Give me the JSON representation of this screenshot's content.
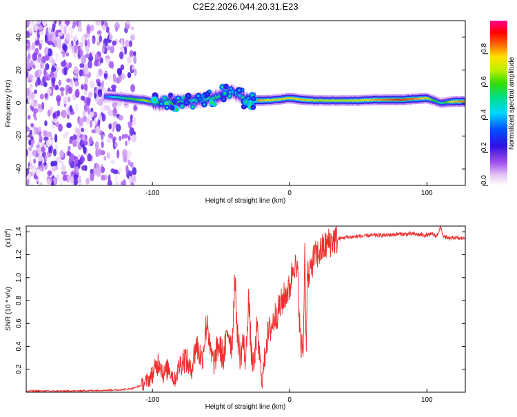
{
  "page_title": "C2E2.2026.044.20.31.E23",
  "colors": {
    "snr_line": "#f03030",
    "axis": "#000000",
    "spectro_background": "#ffffff"
  },
  "chart_data": [
    {
      "type": "heatmap",
      "title": "C2E2.2026.044.20.31.E23",
      "xlabel": "Height of straight line (km)",
      "ylabel": "Frequency (Hz)",
      "xlim": [
        -192,
        128
      ],
      "ylim": [
        -50,
        50
      ],
      "x_ticks": [
        -100,
        0,
        100
      ],
      "x_tick_labels": [
        "-100",
        "0",
        "100"
      ],
      "y_ticks": [
        -40,
        -20,
        0,
        20,
        40
      ],
      "y_tick_labels": [
        "-40",
        "-20",
        "0",
        "20",
        "40"
      ],
      "colorbar": {
        "label": "Normalized spectral amplitude",
        "range": [
          0,
          1
        ],
        "ticks": [
          0.0,
          0.2,
          0.4,
          0.6,
          0.8
        ],
        "tick_labels": [
          "0.0",
          "0.2",
          "0.4",
          "0.6",
          "0.8"
        ]
      },
      "ridge": {
        "x": [
          -135,
          -125,
          -115,
          -105,
          -95,
          -85,
          -75,
          -65,
          -55,
          -48,
          -42,
          -36,
          -30,
          -25,
          -20,
          -10,
          0,
          10,
          20,
          30,
          40,
          50,
          60,
          70,
          80,
          90,
          100,
          105,
          110,
          120,
          128
        ],
        "freq": [
          4,
          3.5,
          2.5,
          1.5,
          0,
          0.5,
          1,
          2,
          3,
          6,
          7,
          4,
          1,
          1.5,
          1.5,
          2,
          3,
          2,
          1.5,
          1.5,
          1.5,
          1.5,
          2,
          2,
          2,
          2.5,
          3,
          1.5,
          0,
          1,
          1
        ],
        "amplitude": [
          0.35,
          0.5,
          0.6,
          0.7,
          0.55,
          0.6,
          0.5,
          0.5,
          0.55,
          0.5,
          0.45,
          0.45,
          0.7,
          0.85,
          0.8,
          0.75,
          0.75,
          0.8,
          0.7,
          0.7,
          0.7,
          0.75,
          0.8,
          0.85,
          0.9,
          0.85,
          0.75,
          0.6,
          0.5,
          0.8,
          0.85
        ]
      },
      "noise_region": {
        "x_range": [
          -192,
          -112
        ],
        "freq_range": [
          -50,
          50
        ],
        "amplitude_range": [
          0.02,
          0.15
        ]
      }
    },
    {
      "type": "line",
      "xlabel": "Height of straight line (km)",
      "ylabel": "SNR (10 * v/v)",
      "y_scale_label": "(x10",
      "y_scale_exponent": "4",
      "y_scale_close": ")",
      "xlim": [
        -192,
        128
      ],
      "ylim": [
        0.0,
        1.45
      ],
      "x_ticks": [
        -100,
        0,
        100
      ],
      "x_tick_labels": [
        "-100",
        "0",
        "100"
      ],
      "y_ticks": [
        0.2,
        0.4,
        0.6,
        0.8,
        1.0,
        1.2,
        1.4
      ],
      "y_tick_labels": [
        "0.2",
        "0.4",
        "0.6",
        "0.8",
        "1.0",
        "1.2",
        "1.4"
      ],
      "series": [
        {
          "name": "SNR",
          "x": [
            -192,
            -180,
            -160,
            -140,
            -125,
            -115,
            -108,
            -102,
            -98,
            -95,
            -92,
            -88,
            -84,
            -80,
            -76,
            -72,
            -68,
            -64,
            -60,
            -58,
            -55,
            -52,
            -48,
            -45,
            -42,
            -40,
            -38,
            -36,
            -34,
            -32,
            -30,
            -28,
            -26,
            -24,
            -22,
            -20,
            -17,
            -14,
            -11,
            -8,
            -5,
            -2,
            0,
            3,
            6,
            8,
            10,
            11,
            12,
            13,
            14,
            16,
            18,
            20,
            24,
            28,
            32,
            36,
            40,
            50,
            60,
            70,
            80,
            90,
            100,
            104,
            107,
            110,
            112,
            116,
            120,
            124,
            128
          ],
          "y": [
            0.01,
            0.01,
            0.01,
            0.015,
            0.02,
            0.03,
            0.06,
            0.12,
            0.2,
            0.28,
            0.15,
            0.22,
            0.1,
            0.24,
            0.3,
            0.18,
            0.42,
            0.28,
            0.65,
            0.35,
            0.25,
            0.42,
            0.3,
            0.55,
            0.4,
            1.0,
            0.5,
            0.3,
            0.45,
            0.25,
            0.85,
            0.35,
            0.2,
            0.55,
            0.32,
            0.08,
            0.45,
            0.55,
            0.65,
            0.72,
            0.8,
            0.88,
            0.9,
            1.15,
            1.0,
            0.38,
            0.4,
            1.33,
            0.36,
            1.1,
            0.95,
            1.12,
            1.18,
            1.2,
            1.25,
            1.3,
            1.33,
            1.34,
            1.35,
            1.36,
            1.37,
            1.37,
            1.38,
            1.38,
            1.37,
            1.38,
            1.36,
            1.44,
            1.36,
            1.34,
            1.35,
            1.34,
            1.35
          ],
          "color": "#f03030"
        }
      ]
    }
  ]
}
